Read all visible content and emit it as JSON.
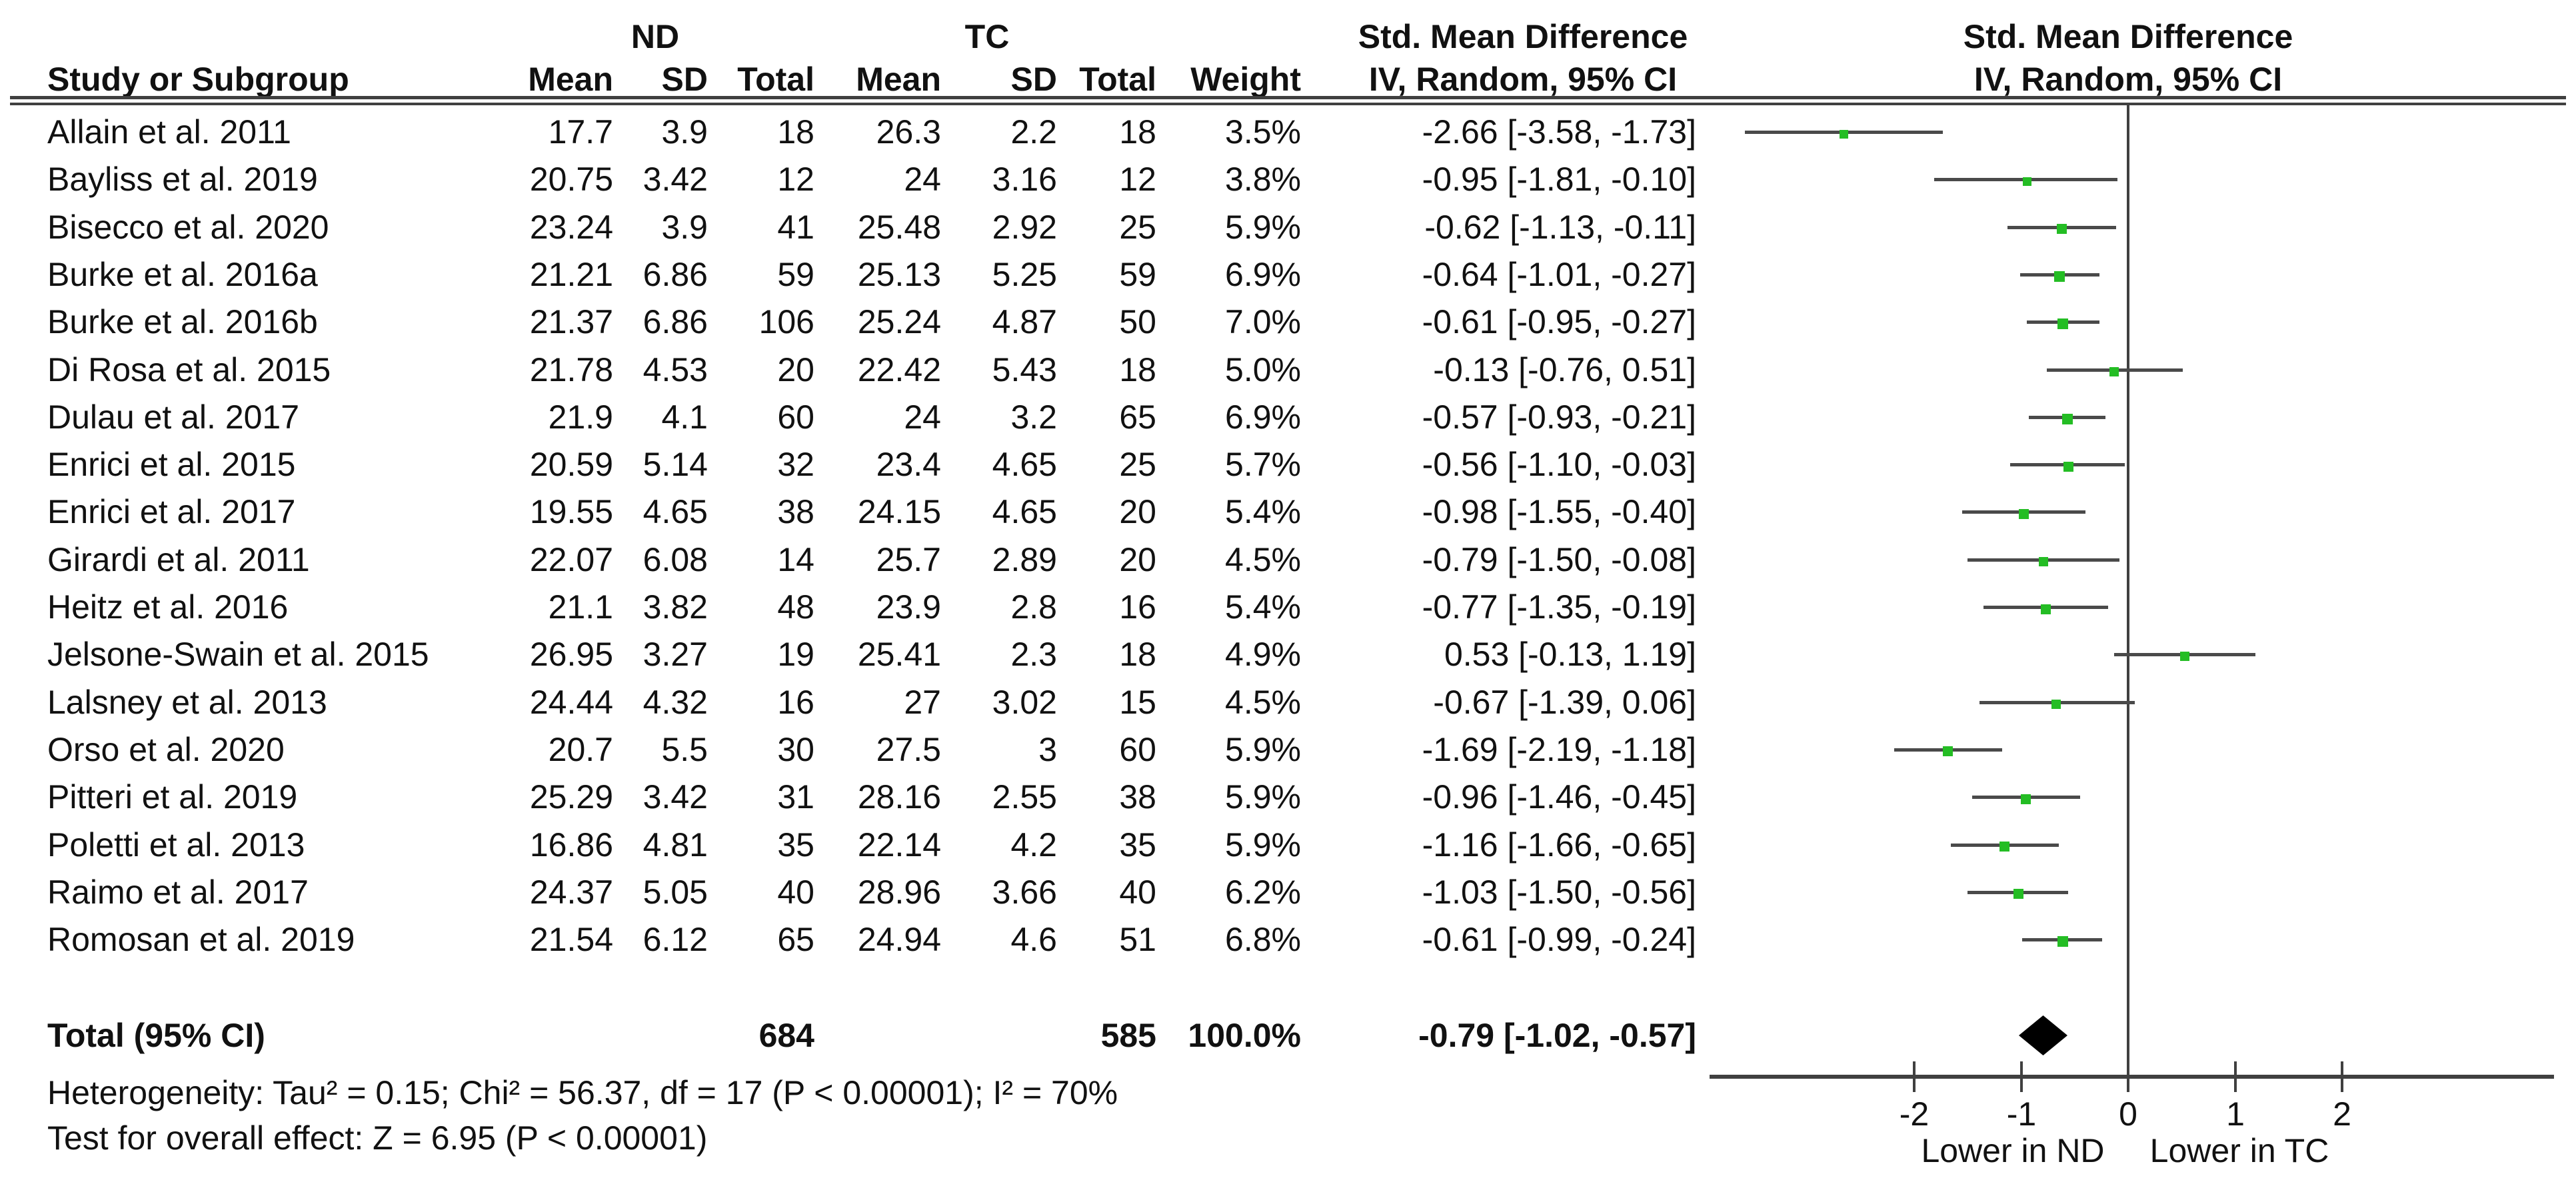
{
  "header": {
    "group1": "ND",
    "group2": "TC",
    "col_study": "Study or Subgroup",
    "col_mean": "Mean",
    "col_sd": "SD",
    "col_total": "Total",
    "col_weight": "Weight",
    "effect_line1": "Std. Mean Difference",
    "effect_line2": "IV, Random, 95% CI"
  },
  "chart_data": {
    "type": "scatter",
    "subtype": "forest-plot-meta-analysis",
    "title": "Std. Mean Difference",
    "effect_measure": "IV, Random, 95% CI",
    "groups": [
      "ND",
      "TC"
    ],
    "studies": [
      {
        "name": "Allain et al. 2011",
        "nd_mean": "17.7",
        "nd_sd": "3.9",
        "nd_total": "18",
        "tc_mean": "26.3",
        "tc_sd": "2.2",
        "tc_total": "18",
        "weight": "3.5%",
        "smd": -2.66,
        "ci_low": -3.58,
        "ci_high": -1.73,
        "ci_text": "-2.66 [-3.58, -1.73]"
      },
      {
        "name": "Bayliss et al. 2019",
        "nd_mean": "20.75",
        "nd_sd": "3.42",
        "nd_total": "12",
        "tc_mean": "24",
        "tc_sd": "3.16",
        "tc_total": "12",
        "weight": "3.8%",
        "smd": -0.95,
        "ci_low": -1.81,
        "ci_high": -0.1,
        "ci_text": "-0.95 [-1.81, -0.10]"
      },
      {
        "name": "Bisecco et al. 2020",
        "nd_mean": "23.24",
        "nd_sd": "3.9",
        "nd_total": "41",
        "tc_mean": "25.48",
        "tc_sd": "2.92",
        "tc_total": "25",
        "weight": "5.9%",
        "smd": -0.62,
        "ci_low": -1.13,
        "ci_high": -0.11,
        "ci_text": "-0.62 [-1.13, -0.11]"
      },
      {
        "name": "Burke et al. 2016a",
        "nd_mean": "21.21",
        "nd_sd": "6.86",
        "nd_total": "59",
        "tc_mean": "25.13",
        "tc_sd": "5.25",
        "tc_total": "59",
        "weight": "6.9%",
        "smd": -0.64,
        "ci_low": -1.01,
        "ci_high": -0.27,
        "ci_text": "-0.64 [-1.01, -0.27]"
      },
      {
        "name": "Burke et al. 2016b",
        "nd_mean": "21.37",
        "nd_sd": "6.86",
        "nd_total": "106",
        "tc_mean": "25.24",
        "tc_sd": "4.87",
        "tc_total": "50",
        "weight": "7.0%",
        "smd": -0.61,
        "ci_low": -0.95,
        "ci_high": -0.27,
        "ci_text": "-0.61 [-0.95, -0.27]"
      },
      {
        "name": "Di Rosa et al. 2015",
        "nd_mean": "21.78",
        "nd_sd": "4.53",
        "nd_total": "20",
        "tc_mean": "22.42",
        "tc_sd": "5.43",
        "tc_total": "18",
        "weight": "5.0%",
        "smd": -0.13,
        "ci_low": -0.76,
        "ci_high": 0.51,
        "ci_text": "-0.13 [-0.76, 0.51]"
      },
      {
        "name": "Dulau et al. 2017",
        "nd_mean": "21.9",
        "nd_sd": "4.1",
        "nd_total": "60",
        "tc_mean": "24",
        "tc_sd": "3.2",
        "tc_total": "65",
        "weight": "6.9%",
        "smd": -0.57,
        "ci_low": -0.93,
        "ci_high": -0.21,
        "ci_text": "-0.57 [-0.93, -0.21]"
      },
      {
        "name": "Enrici et al. 2015",
        "nd_mean": "20.59",
        "nd_sd": "5.14",
        "nd_total": "32",
        "tc_mean": "23.4",
        "tc_sd": "4.65",
        "tc_total": "25",
        "weight": "5.7%",
        "smd": -0.56,
        "ci_low": -1.1,
        "ci_high": -0.03,
        "ci_text": "-0.56 [-1.10, -0.03]"
      },
      {
        "name": "Enrici et al. 2017",
        "nd_mean": "19.55",
        "nd_sd": "4.65",
        "nd_total": "38",
        "tc_mean": "24.15",
        "tc_sd": "4.65",
        "tc_total": "20",
        "weight": "5.4%",
        "smd": -0.98,
        "ci_low": -1.55,
        "ci_high": -0.4,
        "ci_text": "-0.98 [-1.55, -0.40]"
      },
      {
        "name": "Girardi et al. 2011",
        "nd_mean": "22.07",
        "nd_sd": "6.08",
        "nd_total": "14",
        "tc_mean": "25.7",
        "tc_sd": "2.89",
        "tc_total": "20",
        "weight": "4.5%",
        "smd": -0.79,
        "ci_low": -1.5,
        "ci_high": -0.08,
        "ci_text": "-0.79 [-1.50, -0.08]"
      },
      {
        "name": "Heitz et al. 2016",
        "nd_mean": "21.1",
        "nd_sd": "3.82",
        "nd_total": "48",
        "tc_mean": "23.9",
        "tc_sd": "2.8",
        "tc_total": "16",
        "weight": "5.4%",
        "smd": -0.77,
        "ci_low": -1.35,
        "ci_high": -0.19,
        "ci_text": "-0.77 [-1.35, -0.19]"
      },
      {
        "name": "Jelsone-Swain et al. 2015",
        "nd_mean": "26.95",
        "nd_sd": "3.27",
        "nd_total": "19",
        "tc_mean": "25.41",
        "tc_sd": "2.3",
        "tc_total": "18",
        "weight": "4.9%",
        "smd": 0.53,
        "ci_low": -0.13,
        "ci_high": 1.19,
        "ci_text": "0.53 [-0.13, 1.19]"
      },
      {
        "name": "Lalsney et al. 2013",
        "nd_mean": "24.44",
        "nd_sd": "4.32",
        "nd_total": "16",
        "tc_mean": "27",
        "tc_sd": "3.02",
        "tc_total": "15",
        "weight": "4.5%",
        "smd": -0.67,
        "ci_low": -1.39,
        "ci_high": 0.06,
        "ci_text": "-0.67 [-1.39, 0.06]"
      },
      {
        "name": "Orso et al. 2020",
        "nd_mean": "20.7",
        "nd_sd": "5.5",
        "nd_total": "30",
        "tc_mean": "27.5",
        "tc_sd": "3",
        "tc_total": "60",
        "weight": "5.9%",
        "smd": -1.69,
        "ci_low": -2.19,
        "ci_high": -1.18,
        "ci_text": "-1.69 [-2.19, -1.18]"
      },
      {
        "name": "Pitteri et al. 2019",
        "nd_mean": "25.29",
        "nd_sd": "3.42",
        "nd_total": "31",
        "tc_mean": "28.16",
        "tc_sd": "2.55",
        "tc_total": "38",
        "weight": "5.9%",
        "smd": -0.96,
        "ci_low": -1.46,
        "ci_high": -0.45,
        "ci_text": "-0.96 [-1.46, -0.45]"
      },
      {
        "name": "Poletti et al. 2013",
        "nd_mean": "16.86",
        "nd_sd": "4.81",
        "nd_total": "35",
        "tc_mean": "22.14",
        "tc_sd": "4.2",
        "tc_total": "35",
        "weight": "5.9%",
        "smd": -1.16,
        "ci_low": -1.66,
        "ci_high": -0.65,
        "ci_text": "-1.16 [-1.66, -0.65]"
      },
      {
        "name": "Raimo et al. 2017",
        "nd_mean": "24.37",
        "nd_sd": "5.05",
        "nd_total": "40",
        "tc_mean": "28.96",
        "tc_sd": "3.66",
        "tc_total": "40",
        "weight": "6.2%",
        "smd": -1.03,
        "ci_low": -1.5,
        "ci_high": -0.56,
        "ci_text": "-1.03 [-1.50, -0.56]"
      },
      {
        "name": "Romosan et al. 2019",
        "nd_mean": "21.54",
        "nd_sd": "6.12",
        "nd_total": "65",
        "tc_mean": "24.94",
        "tc_sd": "4.6",
        "tc_total": "51",
        "weight": "6.8%",
        "smd": -0.61,
        "ci_low": -0.99,
        "ci_high": -0.24,
        "ci_text": "-0.61 [-0.99, -0.24]"
      }
    ],
    "total": {
      "label": "Total (95% CI)",
      "nd_total": "684",
      "tc_total": "585",
      "weight": "100.0%",
      "smd": -0.79,
      "ci_low": -1.02,
      "ci_high": -0.57,
      "ci_text": "-0.79 [-1.02, -0.57]"
    },
    "axis": {
      "tick_values": [
        -2,
        -1,
        0,
        1,
        2
      ],
      "xlim": [
        -3.9,
        4.0
      ],
      "left_label": "Lower in ND",
      "right_label": "Lower in TC"
    },
    "legend_position": "none",
    "grid": false
  },
  "footer": {
    "heterogeneity": "Heterogeneity: Tau² = 0.15; Chi² = 56.37, df = 17 (P < 0.00001); I² = 70%",
    "overall_test": "Test for overall effect: Z = 6.95 (P < 0.00001)"
  },
  "colors": {
    "marker_green": "#24bd24",
    "ci_line": "#4a4a4a",
    "rule": "#404040",
    "diamond": "#000000"
  }
}
